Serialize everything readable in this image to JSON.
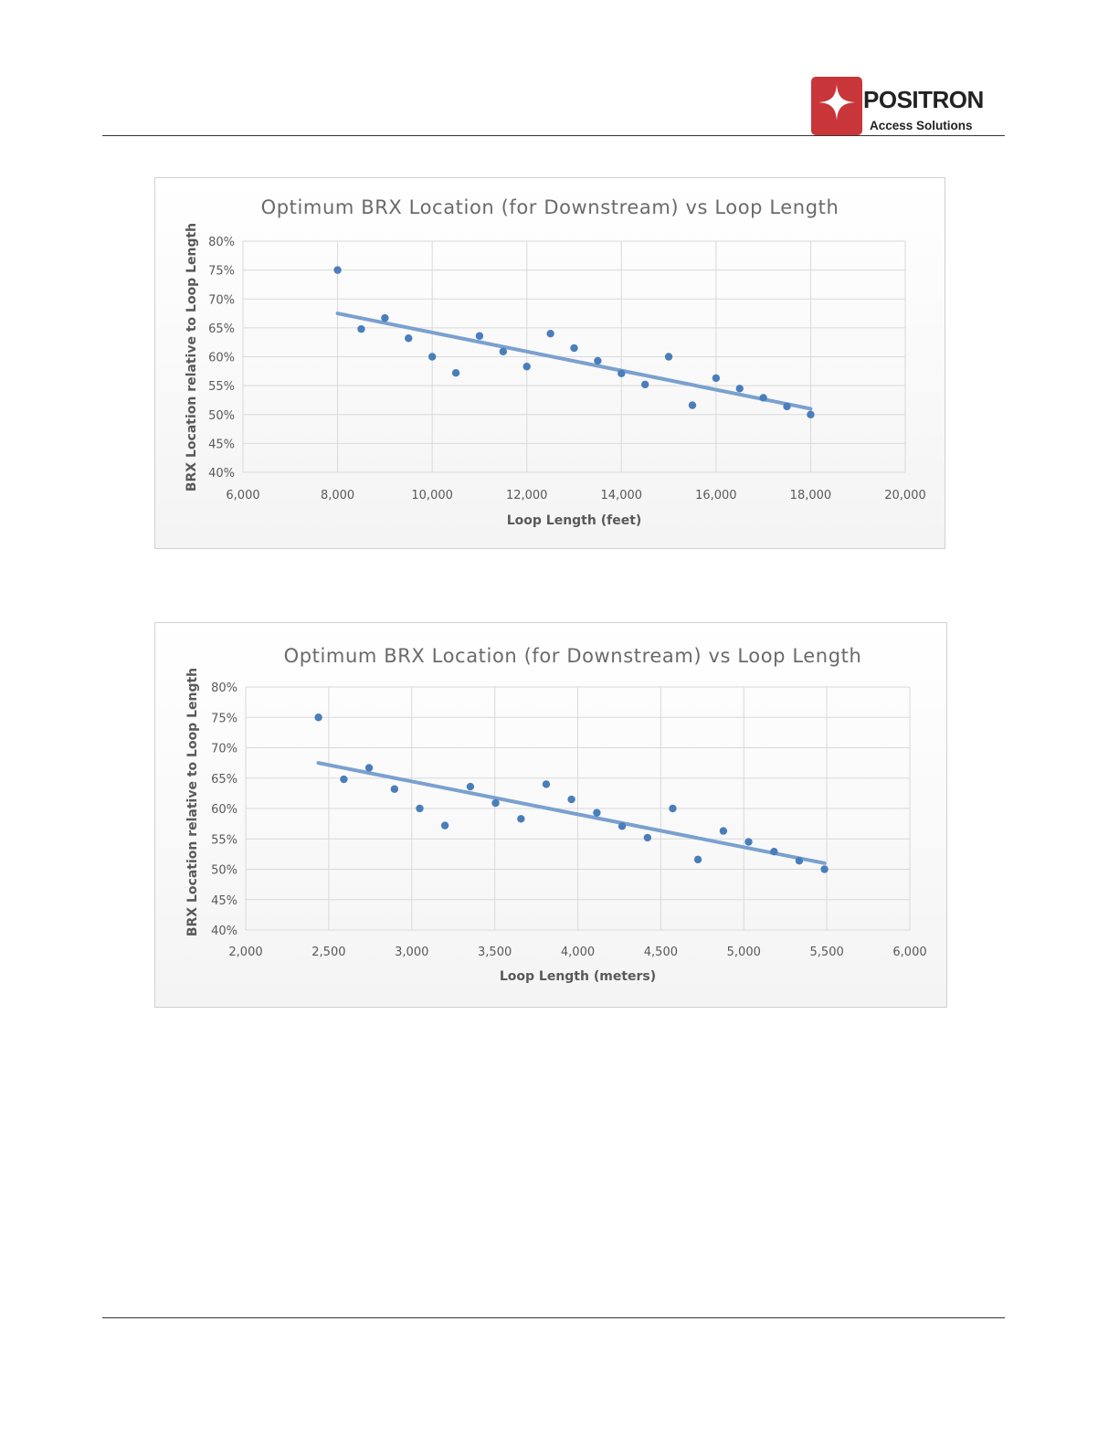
{
  "header": {
    "logo_name": "POSITRON",
    "logo_sub": "Access Solutions",
    "logo_color": "#c8363a"
  },
  "chart_data": [
    {
      "type": "scatter",
      "title": "Optimum BRX Location (for Downstream) vs Loop Length",
      "xlabel": "Loop Length (feet)",
      "ylabel": "BRX Location relative to Loop Length",
      "xlim": [
        6000,
        20000
      ],
      "ylim": [
        40,
        80
      ],
      "xticks": [
        6000,
        8000,
        10000,
        12000,
        14000,
        16000,
        18000,
        20000
      ],
      "xtick_labels": [
        "6,000",
        "8,000",
        "10,000",
        "12,000",
        "14,000",
        "16,000",
        "18,000",
        "20,000"
      ],
      "yticks": [
        40,
        45,
        50,
        55,
        60,
        65,
        70,
        75,
        80
      ],
      "ytick_labels": [
        "40%",
        "45%",
        "50%",
        "55%",
        "60%",
        "65%",
        "70%",
        "75%",
        "80%"
      ],
      "grid": true,
      "point_color": "#4a7ebb",
      "trend_color": "#7aa0cf",
      "x": [
        8000,
        8500,
        9000,
        9500,
        10000,
        10500,
        11000,
        11500,
        12000,
        12500,
        13000,
        13500,
        14000,
        14500,
        15000,
        15500,
        16000,
        16500,
        17000,
        17500,
        18000
      ],
      "y": [
        75,
        64.8,
        66.7,
        63.2,
        60,
        57.2,
        63.6,
        60.9,
        58.3,
        64,
        61.5,
        59.3,
        57.1,
        55.2,
        60,
        51.6,
        56.3,
        54.5,
        52.9,
        51.4,
        50
      ],
      "trendline": {
        "x": [
          8000,
          18000
        ],
        "y": [
          67.5,
          51
        ]
      }
    },
    {
      "type": "scatter",
      "title": "Optimum BRX Location (for Downstream) vs Loop Length",
      "xlabel": "Loop Length (meters)",
      "ylabel": "BRX Location relative to Loop Length",
      "xlim": [
        2000,
        6000
      ],
      "ylim": [
        40,
        80
      ],
      "xticks": [
        2000,
        2500,
        3000,
        3500,
        4000,
        4500,
        5000,
        5500,
        6000
      ],
      "xtick_labels": [
        "2,000",
        "2,500",
        "3,000",
        "3,500",
        "4,000",
        "4,500",
        "5,000",
        "5,500",
        "6,000"
      ],
      "yticks": [
        40,
        45,
        50,
        55,
        60,
        65,
        70,
        75,
        80
      ],
      "ytick_labels": [
        "40%",
        "45%",
        "50%",
        "55%",
        "60%",
        "65%",
        "70%",
        "75%",
        "80%"
      ],
      "grid": true,
      "point_color": "#4a7ebb",
      "trend_color": "#7aa0cf",
      "x": [
        2438,
        2591,
        2743,
        2896,
        3048,
        3200,
        3353,
        3505,
        3658,
        3810,
        3962,
        4115,
        4267,
        4420,
        4572,
        4724,
        4877,
        5029,
        5182,
        5334,
        5486
      ],
      "y": [
        75,
        64.8,
        66.7,
        63.2,
        60,
        57.2,
        63.6,
        60.9,
        58.3,
        64,
        61.5,
        59.3,
        57.1,
        55.2,
        60,
        51.6,
        56.3,
        54.5,
        52.9,
        51.4,
        50
      ],
      "trendline": {
        "x": [
          2438,
          5486
        ],
        "y": [
          67.5,
          51
        ]
      }
    }
  ]
}
